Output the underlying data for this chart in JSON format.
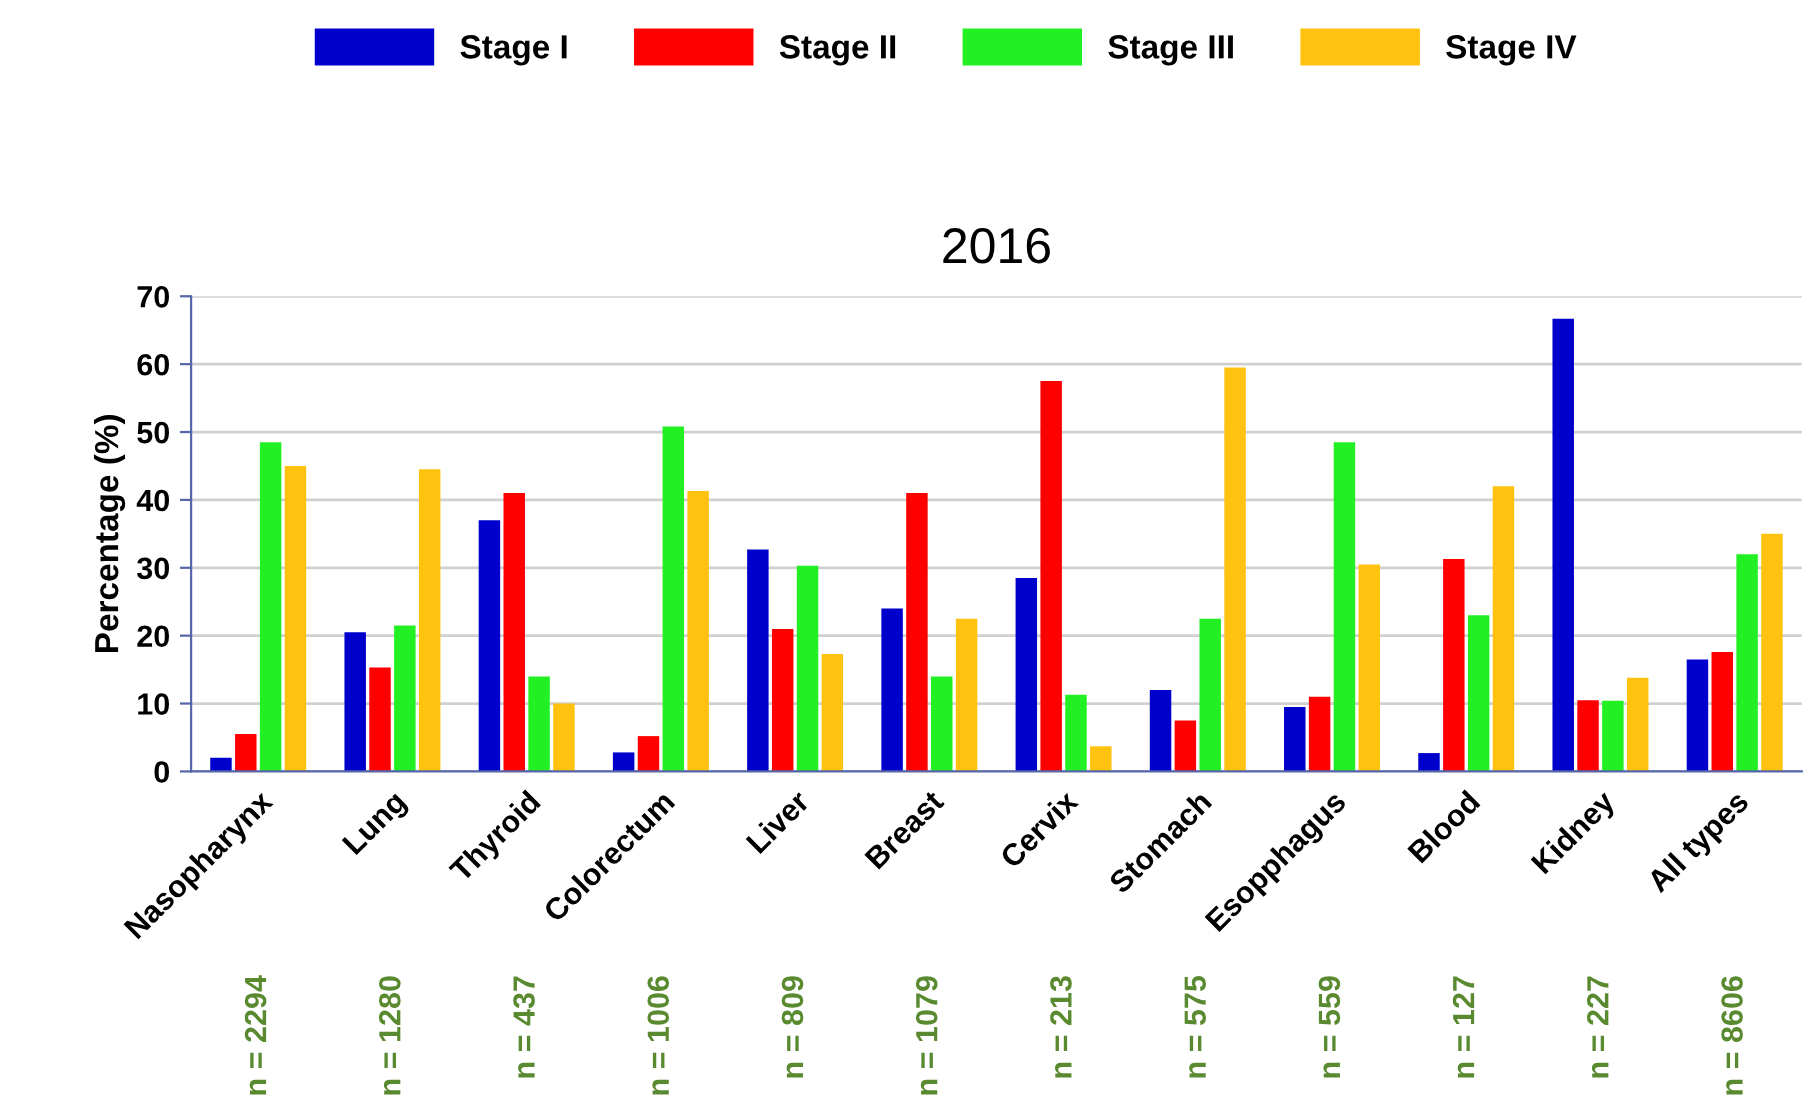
{
  "chart_data": {
    "type": "bar",
    "title": "2016",
    "ylabel": "Percentage (%)",
    "categories": [
      "Nasopharynx",
      "Lung",
      "Thyroid",
      "Colorectum",
      "Liver",
      "Breast",
      "Cervix",
      "Stomach",
      "Esopphagus",
      "Blood",
      "Kidney",
      "All types"
    ],
    "series": [
      {
        "name": "Stage I",
        "color": "#0000cc",
        "values": [
          2,
          20.5,
          37,
          2.8,
          32.7,
          24,
          28.5,
          12,
          9.5,
          2.7,
          66.7,
          16.5
        ]
      },
      {
        "name": "Stage II",
        "color": "#ff0000",
        "values": [
          5.5,
          15.3,
          41,
          5.2,
          21,
          41,
          57.5,
          7.5,
          11,
          31.3,
          10.5,
          17.6
        ]
      },
      {
        "name": "Stage III",
        "color": "#22f022",
        "values": [
          48.5,
          21.5,
          14,
          50.8,
          30.3,
          14,
          11.3,
          22.5,
          48.5,
          23,
          10.4,
          32
        ]
      },
      {
        "name": "Stage IV",
        "color": "#ffc20e",
        "values": [
          45,
          44.5,
          10,
          41.3,
          17.3,
          22.5,
          3.7,
          59.5,
          30.5,
          42,
          13.8,
          35
        ]
      }
    ],
    "annotations": [
      "n = 2294",
      "n = 1280",
      "n = 437",
      "n = 1006",
      "n = 809",
      "n = 1079",
      "n = 213",
      "n = 575",
      "n = 559",
      "n = 127",
      "n = 227",
      "n = 8606"
    ],
    "ylim": [
      0,
      70
    ],
    "yticks": [
      0,
      10,
      20,
      30,
      40,
      50,
      60,
      70
    ],
    "grid": "y",
    "legend": "top"
  }
}
